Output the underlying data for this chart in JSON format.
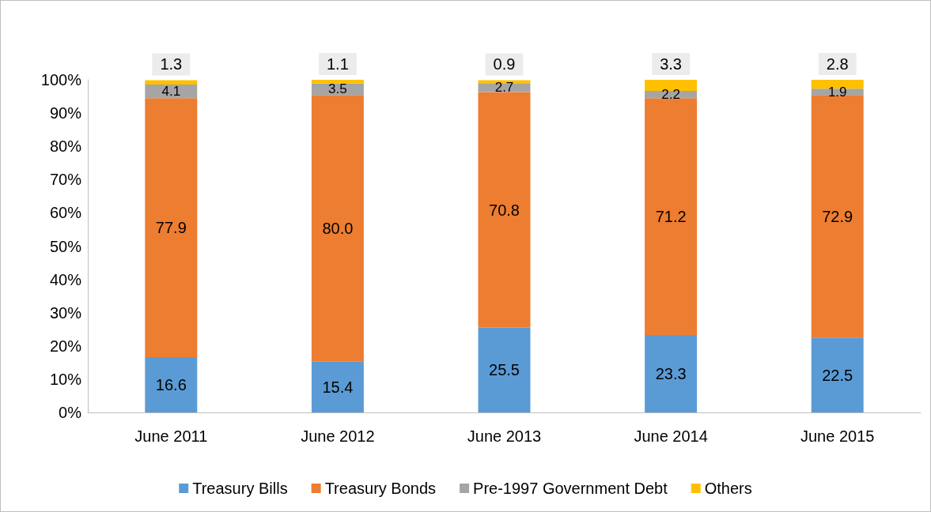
{
  "chart_data": {
    "type": "bar",
    "stacked": true,
    "categories": [
      "June 2011",
      "June 2012",
      "June 2013",
      "June 2014",
      "June 2015"
    ],
    "series": [
      {
        "name": "Treasury Bills",
        "color": "#5b9bd5",
        "values": [
          16.6,
          15.4,
          25.5,
          23.3,
          22.5
        ],
        "value_labels": [
          "16.6",
          "15.4",
          "25.5",
          "23.3",
          "22.5"
        ]
      },
      {
        "name": "Treasury Bonds",
        "color": "#ed7d31",
        "values": [
          77.9,
          80.0,
          70.8,
          71.2,
          72.9
        ],
        "value_labels": [
          "77.9",
          "80.0",
          "70.8",
          "71.2",
          "72.9"
        ]
      },
      {
        "name": "Pre-1997 Government Debt",
        "color": "#a5a5a5",
        "values": [
          4.1,
          3.5,
          2.7,
          2.2,
          1.9
        ],
        "value_labels": [
          "4.1",
          "3.5",
          "2.7",
          "2.2",
          "1.9"
        ]
      },
      {
        "name": "Others",
        "color": "#ffc000",
        "values": [
          1.3,
          1.1,
          0.9,
          3.3,
          2.8
        ],
        "value_labels": [
          "1.3",
          "1.1",
          "0.9",
          "3.3",
          "2.8"
        ]
      }
    ],
    "ylim": [
      0,
      100
    ],
    "yticks": [
      {
        "value": 0,
        "label": "0%"
      },
      {
        "value": 10,
        "label": "10%"
      },
      {
        "value": 20,
        "label": "20%"
      },
      {
        "value": 30,
        "label": "30%"
      },
      {
        "value": 40,
        "label": "40%"
      },
      {
        "value": 50,
        "label": "50%"
      },
      {
        "value": 60,
        "label": "60%"
      },
      {
        "value": 70,
        "label": "70%"
      },
      {
        "value": 80,
        "label": "80%"
      },
      {
        "value": 90,
        "label": "90%"
      },
      {
        "value": 100,
        "label": "100%"
      }
    ],
    "grid": false,
    "legend": "bottom"
  }
}
